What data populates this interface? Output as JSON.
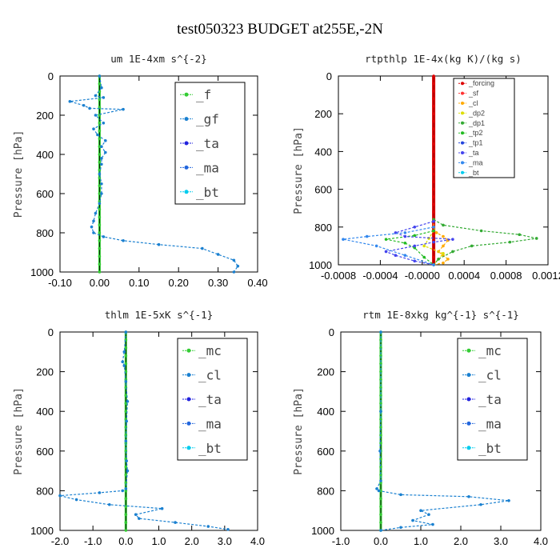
{
  "figure": {
    "title": "test050323  BUDGET at255E,-2N"
  },
  "chart_data": [
    {
      "type": "line",
      "title": "um  1E-4xm s^{-2}",
      "ylabel": "Pressure [hPa]",
      "xlim": [
        -0.1,
        0.4
      ],
      "ylim": [
        1000,
        0
      ],
      "xticks": [
        "-0.10",
        "0.00",
        "0.10",
        "0.20",
        "0.30",
        "0.40"
      ],
      "yticks": [
        "0",
        "200",
        "400",
        "600",
        "800",
        "1000"
      ],
      "legend_style": "big",
      "series": [
        {
          "name": "_f",
          "color": "#33cc33",
          "x": [
            0,
            0,
            0,
            0,
            0,
            0,
            0,
            0,
            0,
            0,
            0,
            0,
            0,
            0,
            0,
            0,
            0,
            0,
            0,
            0,
            0,
            0,
            0,
            0,
            0,
            0
          ],
          "y": [
            0,
            40,
            80,
            120,
            160,
            200,
            240,
            280,
            320,
            360,
            400,
            440,
            480,
            520,
            560,
            600,
            640,
            680,
            720,
            760,
            800,
            840,
            880,
            920,
            960,
            1000
          ]
        },
        {
          "name": "_gf",
          "color": "#1a80d0",
          "x": [
            0,
            0.005,
            -0.01,
            0.01,
            -0.075,
            -0.04,
            -0.025,
            0.06,
            -0.01,
            0.01,
            -0.015,
            -0.005,
            0.015,
            0.005,
            0.015,
            0.005,
            0.005,
            0,
            0.005,
            0.005,
            0,
            -0.01,
            -0.015,
            -0.02,
            -0.015,
            0.01,
            0.06,
            0.15,
            0.26,
            0.3,
            0.34,
            0.35,
            0.34
          ],
          "y": [
            0,
            60,
            100,
            110,
            130,
            150,
            165,
            170,
            200,
            240,
            270,
            300,
            330,
            360,
            390,
            420,
            450,
            500,
            550,
            600,
            650,
            700,
            740,
            770,
            800,
            820,
            840,
            860,
            880,
            910,
            940,
            970,
            1000
          ]
        },
        {
          "name": "_ta",
          "color": "#2222dd",
          "x": [],
          "y": []
        },
        {
          "name": "_ma",
          "color": "#2266dd",
          "x": [],
          "y": []
        },
        {
          "name": "_bt",
          "color": "#00ccee",
          "x": [],
          "y": []
        }
      ]
    },
    {
      "type": "line",
      "title": "rtpthlp  1E-4x(kg K)/(kg s)",
      "ylabel": "Pressure [hPa]",
      "xlim": [
        -0.001,
        0.0012
      ],
      "ylim": [
        1000,
        0
      ],
      "xticks": [
        "-0.0008",
        "-0.0004",
        "-0.0000",
        "0.0004",
        "0.0008",
        "0.0012"
      ],
      "yticks": [
        "0",
        "200",
        "400",
        "600",
        "800",
        "1000"
      ],
      "legend_style": "small",
      "series": [
        {
          "name": "_forcing",
          "color": "#dd0000",
          "x": [
            0,
            0,
            0,
            0,
            0,
            0,
            0,
            0,
            0,
            0,
            0,
            0,
            0,
            0,
            0,
            0,
            0,
            0,
            0,
            0,
            0,
            0,
            0,
            0,
            0,
            0
          ],
          "y": [
            0,
            40,
            80,
            120,
            160,
            200,
            240,
            280,
            320,
            360,
            400,
            440,
            480,
            520,
            560,
            600,
            640,
            680,
            720,
            760,
            800,
            840,
            880,
            920,
            960,
            1000
          ]
        },
        {
          "name": "_sf",
          "color": "#ff3333",
          "x": [],
          "y": []
        },
        {
          "name": "_cl",
          "color": "#ffaa00",
          "x": [
            0,
            0,
            3e-05,
            0.0001,
            0.00015,
            0.0001,
            5e-05,
            0.0001,
            0.00015,
            0.0001,
            0
          ],
          "y": [
            760,
            800,
            830,
            850,
            870,
            900,
            930,
            950,
            970,
            990,
            1000
          ]
        },
        {
          "name": "_dp2",
          "color": "#dddd00",
          "x": [
            0,
            -5e-05,
            -0.0001,
            0.0001,
            5e-05,
            0
          ],
          "y": [
            820,
            860,
            900,
            940,
            970,
            1000
          ]
        },
        {
          "name": "_dp1",
          "color": "#33aa33",
          "x": [
            0,
            0.0001,
            0.0005,
            0.0009,
            0.00108,
            0.0008,
            0.0004,
            0.0002,
            5e-05,
            0
          ],
          "y": [
            760,
            790,
            820,
            840,
            860,
            880,
            900,
            930,
            970,
            1000
          ]
        },
        {
          "name": "_tp2",
          "color": "#22bb22",
          "x": [
            0,
            -0.0002,
            -0.0005,
            -0.0003,
            -0.0002,
            -0.0001,
            0
          ],
          "y": [
            820,
            845,
            865,
            885,
            910,
            960,
            1000
          ]
        },
        {
          "name": "_tp1",
          "color": "#2244dd",
          "x": [],
          "y": []
        },
        {
          "name": "_ta",
          "color": "#4444ee",
          "x": [
            0,
            -0.0002,
            -0.0004,
            -0.0003,
            0.0002,
            0,
            -0.0002,
            -0.0005,
            -0.0004,
            -0.0002,
            0
          ],
          "y": [
            770,
            800,
            830,
            850,
            865,
            880,
            900,
            930,
            950,
            980,
            1000
          ]
        },
        {
          "name": "_ma",
          "color": "#3388ee",
          "x": [
            0,
            -0.0003,
            -0.0007,
            -0.00095,
            -0.0006,
            -0.0003,
            0
          ],
          "y": [
            800,
            830,
            850,
            865,
            900,
            950,
            1000
          ]
        },
        {
          "name": "_bt",
          "color": "#00ccee",
          "x": [],
          "y": []
        }
      ]
    },
    {
      "type": "line",
      "title": "thlm  1E-5xK s^{-1}",
      "ylabel": "Pressure [hPa]",
      "xlim": [
        -2.0,
        4.0
      ],
      "ylim": [
        1000,
        0
      ],
      "xticks": [
        "-2.0",
        "-1.0",
        "0.0",
        "1.0",
        "2.0",
        "3.0",
        "4.0"
      ],
      "yticks": [
        "0",
        "200",
        "400",
        "600",
        "800",
        "1000"
      ],
      "legend_style": "big",
      "series": [
        {
          "name": "_mc",
          "color": "#33cc33",
          "x": [
            0,
            0,
            0,
            0,
            0,
            0,
            0,
            0,
            0,
            0,
            0,
            0,
            0,
            0,
            0,
            0,
            0,
            0,
            0,
            0,
            0,
            0,
            0,
            0,
            0,
            0
          ],
          "y": [
            0,
            40,
            80,
            120,
            160,
            200,
            240,
            280,
            320,
            360,
            400,
            440,
            480,
            520,
            560,
            600,
            640,
            680,
            720,
            760,
            800,
            840,
            880,
            920,
            960,
            1000
          ]
        },
        {
          "name": "_cl",
          "color": "#1a80d0",
          "x": [
            0,
            -0.05,
            -0.1,
            -0.05,
            0,
            0.05,
            0.02,
            0,
            0.02,
            0.05,
            0,
            -0.1,
            -0.8,
            -2.0,
            -1.5,
            -0.5,
            1.1,
            0.3,
            0.4,
            1.5,
            2.5,
            3.1
          ],
          "y": [
            0,
            100,
            150,
            170,
            250,
            350,
            450,
            550,
            650,
            700,
            790,
            800,
            810,
            825,
            845,
            870,
            890,
            920,
            940,
            960,
            980,
            995
          ]
        },
        {
          "name": "_ta",
          "color": "#2222dd",
          "x": [],
          "y": []
        },
        {
          "name": "_ma",
          "color": "#2266dd",
          "x": [],
          "y": []
        },
        {
          "name": "_bt",
          "color": "#00ccee",
          "x": [],
          "y": []
        }
      ]
    },
    {
      "type": "line",
      "title": "rtm  1E-8xkg kg^{-1} s^{-1}",
      "ylabel": "Pressure [hPa]",
      "xlim": [
        -1.0,
        4.0
      ],
      "ylim": [
        1000,
        0
      ],
      "xticks": [
        "-1.0",
        "0.0",
        "1.0",
        "2.0",
        "3.0",
        "4.0"
      ],
      "yticks": [
        "0",
        "200",
        "400",
        "600",
        "800",
        "1000"
      ],
      "legend_style": "big",
      "series": [
        {
          "name": "_mc",
          "color": "#33cc33",
          "x": [
            0,
            0,
            0,
            0,
            0,
            0,
            0,
            0,
            0,
            0,
            0,
            0,
            0,
            0,
            0,
            0,
            0,
            0,
            0,
            0,
            0,
            0,
            0,
            0,
            0,
            0
          ],
          "y": [
            0,
            40,
            80,
            120,
            160,
            200,
            240,
            280,
            320,
            360,
            400,
            440,
            480,
            520,
            560,
            600,
            640,
            680,
            720,
            760,
            800,
            840,
            880,
            920,
            960,
            1000
          ]
        },
        {
          "name": "_cl",
          "color": "#1a80d0",
          "x": [
            0,
            0,
            -0.02,
            0,
            -0.1,
            -0.05,
            0.5,
            2.2,
            3.2,
            2.5,
            1.0,
            1.2,
            0.8,
            1.3,
            0.5,
            0
          ],
          "y": [
            0,
            400,
            600,
            750,
            790,
            800,
            820,
            830,
            850,
            870,
            900,
            920,
            950,
            970,
            985,
            1000
          ]
        },
        {
          "name": "_ta",
          "color": "#2222dd",
          "x": [],
          "y": []
        },
        {
          "name": "_ma",
          "color": "#2266dd",
          "x": [],
          "y": []
        },
        {
          "name": "_bt",
          "color": "#00ccee",
          "x": [],
          "y": []
        }
      ]
    }
  ]
}
